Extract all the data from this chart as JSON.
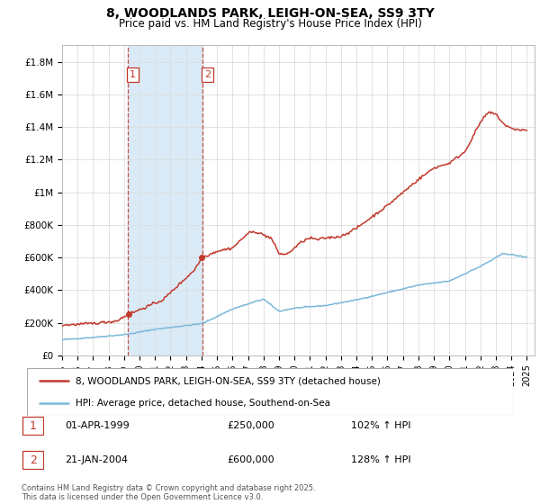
{
  "title": "8, WOODLANDS PARK, LEIGH-ON-SEA, SS9 3TY",
  "subtitle": "Price paid vs. HM Land Registry's House Price Index (HPI)",
  "legend_line1": "8, WOODLANDS PARK, LEIGH-ON-SEA, SS9 3TY (detached house)",
  "legend_line2": "HPI: Average price, detached house, Southend-on-Sea",
  "footer": "Contains HM Land Registry data © Crown copyright and database right 2025.\nThis data is licensed under the Open Government Licence v3.0.",
  "table": [
    {
      "num": "1",
      "date": "01-APR-1999",
      "price": "£250,000",
      "hpi": "102% ↑ HPI"
    },
    {
      "num": "2",
      "date": "21-JAN-2004",
      "price": "£600,000",
      "hpi": "128% ↑ HPI"
    }
  ],
  "sale1_year": 1999.25,
  "sale2_year": 2004.05,
  "hpi_color": "#7ab8d9",
  "price_color": "#c0392b",
  "vline_color": "#c0392b",
  "shade_color": "#d6e8f5",
  "ylim": [
    0,
    1900000
  ],
  "yticks": [
    0,
    200000,
    400000,
    600000,
    800000,
    1000000,
    1200000,
    1400000,
    1600000,
    1800000
  ],
  "ytick_labels": [
    "£0",
    "£200K",
    "£400K",
    "£600K",
    "£800K",
    "£1M",
    "£1.2M",
    "£1.4M",
    "£1.6M",
    "£1.8M"
  ],
  "xmin": 1995,
  "xmax": 2025.5,
  "xticks": [
    1995,
    1996,
    1997,
    1998,
    1999,
    2000,
    2001,
    2002,
    2003,
    2004,
    2005,
    2006,
    2007,
    2008,
    2009,
    2010,
    2011,
    2012,
    2013,
    2014,
    2015,
    2016,
    2017,
    2018,
    2019,
    2020,
    2021,
    2022,
    2023,
    2024,
    2025
  ]
}
